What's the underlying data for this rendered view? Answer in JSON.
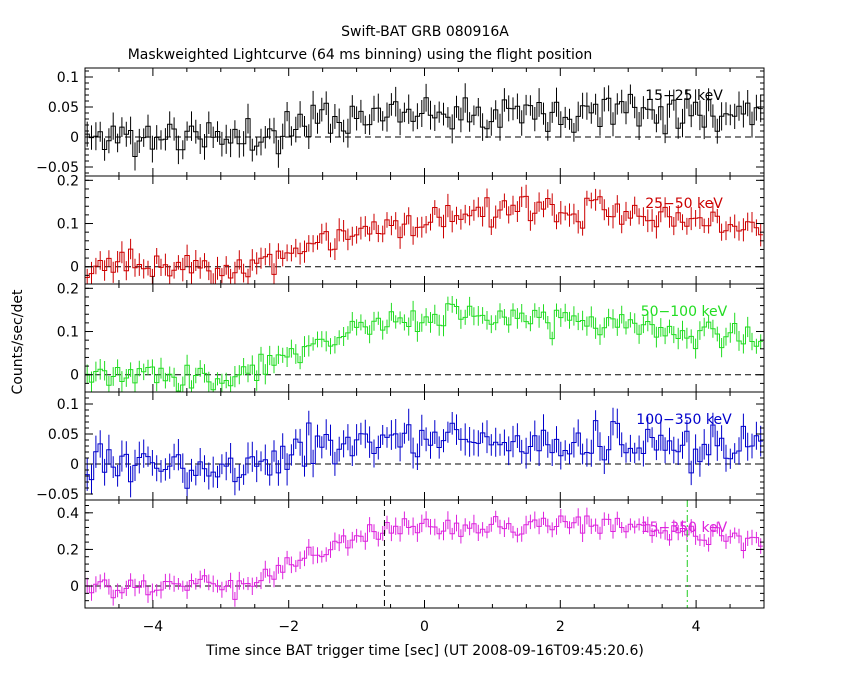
{
  "title": "Swift-BAT GRB 080916A",
  "subtitle": "Maskweighted Lightcurve (64 ms binning) using the flight position",
  "chart_data": {
    "type": "line",
    "style": "step-with-error-bars",
    "xlabel": "Time since BAT trigger time [sec] (UT 2008-09-16T09:45:20.6)",
    "ylabel": "Counts/sec/det",
    "xlim": [
      -5,
      5
    ],
    "x_ticks": [
      -4,
      -2,
      0,
      2,
      4
    ],
    "x_tick_labels": [
      "−4",
      "−2",
      "0",
      "2",
      "4"
    ],
    "bin_width": 0.064,
    "zero_line": "dashed",
    "panels": [
      {
        "name": "15−25 keV",
        "color": "#000000",
        "ylim": [
          -0.065,
          0.115
        ],
        "y_ticks": [
          -0.05,
          0,
          0.05,
          0.1
        ],
        "y_tick_labels": [
          "−0.05",
          "0",
          "0.05",
          "0.1"
        ],
        "level_knots": [
          [
            -5,
            0.0
          ],
          [
            -2.5,
            0.0
          ],
          [
            -1.5,
            0.03
          ],
          [
            0.0,
            0.045
          ],
          [
            5,
            0.045
          ]
        ],
        "noise": 0.02,
        "error": 0.02,
        "seed": 11
      },
      {
        "name": "25−50 keV",
        "color": "#cc0000",
        "ylim": [
          -0.04,
          0.21
        ],
        "y_ticks": [
          0,
          0.1,
          0.2
        ],
        "y_tick_labels": [
          "0",
          "0.1",
          "0.2"
        ],
        "level_knots": [
          [
            -5,
            0.0
          ],
          [
            -2.6,
            0.0
          ],
          [
            -1.5,
            0.06
          ],
          [
            -0.8,
            0.09
          ],
          [
            1.0,
            0.13
          ],
          [
            3.0,
            0.13
          ],
          [
            5,
            0.085
          ]
        ],
        "noise": 0.022,
        "error": 0.022,
        "seed": 23
      },
      {
        "name": "50−100 keV",
        "color": "#22dd22",
        "ylim": [
          -0.04,
          0.21
        ],
        "y_ticks": [
          0,
          0.1,
          0.2
        ],
        "y_tick_labels": [
          "0",
          "0.1",
          "0.2"
        ],
        "level_knots": [
          [
            -5,
            0.0
          ],
          [
            -2.7,
            0.0
          ],
          [
            -1.5,
            0.07
          ],
          [
            -1.0,
            0.12
          ],
          [
            0.5,
            0.13
          ],
          [
            2.5,
            0.12
          ],
          [
            5,
            0.08
          ]
        ],
        "noise": 0.02,
        "error": 0.02,
        "seed": 37
      },
      {
        "name": "100−350 keV",
        "color": "#0000cc",
        "ylim": [
          -0.06,
          0.12
        ],
        "y_ticks": [
          -0.05,
          0,
          0.05,
          0.1
        ],
        "y_tick_labels": [
          "−0.05",
          "0",
          "0.05",
          "0.1"
        ],
        "level_knots": [
          [
            -5,
            0.0
          ],
          [
            -2.2,
            0.0
          ],
          [
            -1.8,
            0.035
          ],
          [
            0.0,
            0.04
          ],
          [
            5,
            0.025
          ]
        ],
        "noise": 0.02,
        "error": 0.022,
        "seed": 53
      },
      {
        "name": "15−350 keV",
        "color": "#dd22dd",
        "ylim": [
          -0.12,
          0.47
        ],
        "y_ticks": [
          0,
          0.2,
          0.4
        ],
        "y_tick_labels": [
          "0",
          "0.2",
          "0.4"
        ],
        "level_knots": [
          [
            -5,
            0.0
          ],
          [
            -2.6,
            0.0
          ],
          [
            -1.0,
            0.28
          ],
          [
            0.0,
            0.32
          ],
          [
            3.0,
            0.33
          ],
          [
            5,
            0.24
          ]
        ],
        "noise": 0.035,
        "error": 0.04,
        "seed": 71
      }
    ],
    "markers": [
      {
        "panel": 4,
        "x": -0.59,
        "style": "dashed",
        "color": "#000000"
      },
      {
        "panel": 4,
        "x": 3.87,
        "style": "dash-dot",
        "color": "#22cc22"
      }
    ]
  }
}
